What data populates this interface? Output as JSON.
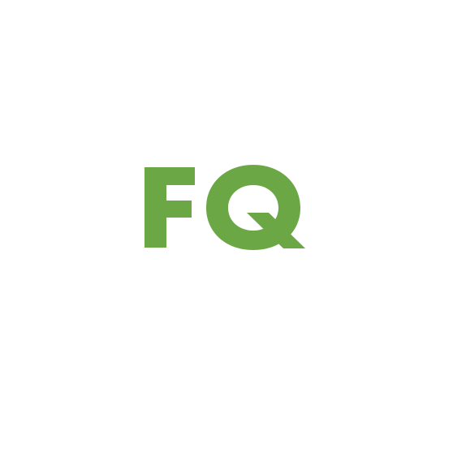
{
  "logo": {
    "text": "FQ",
    "color": "#6ca746",
    "background": "#ffffff"
  }
}
